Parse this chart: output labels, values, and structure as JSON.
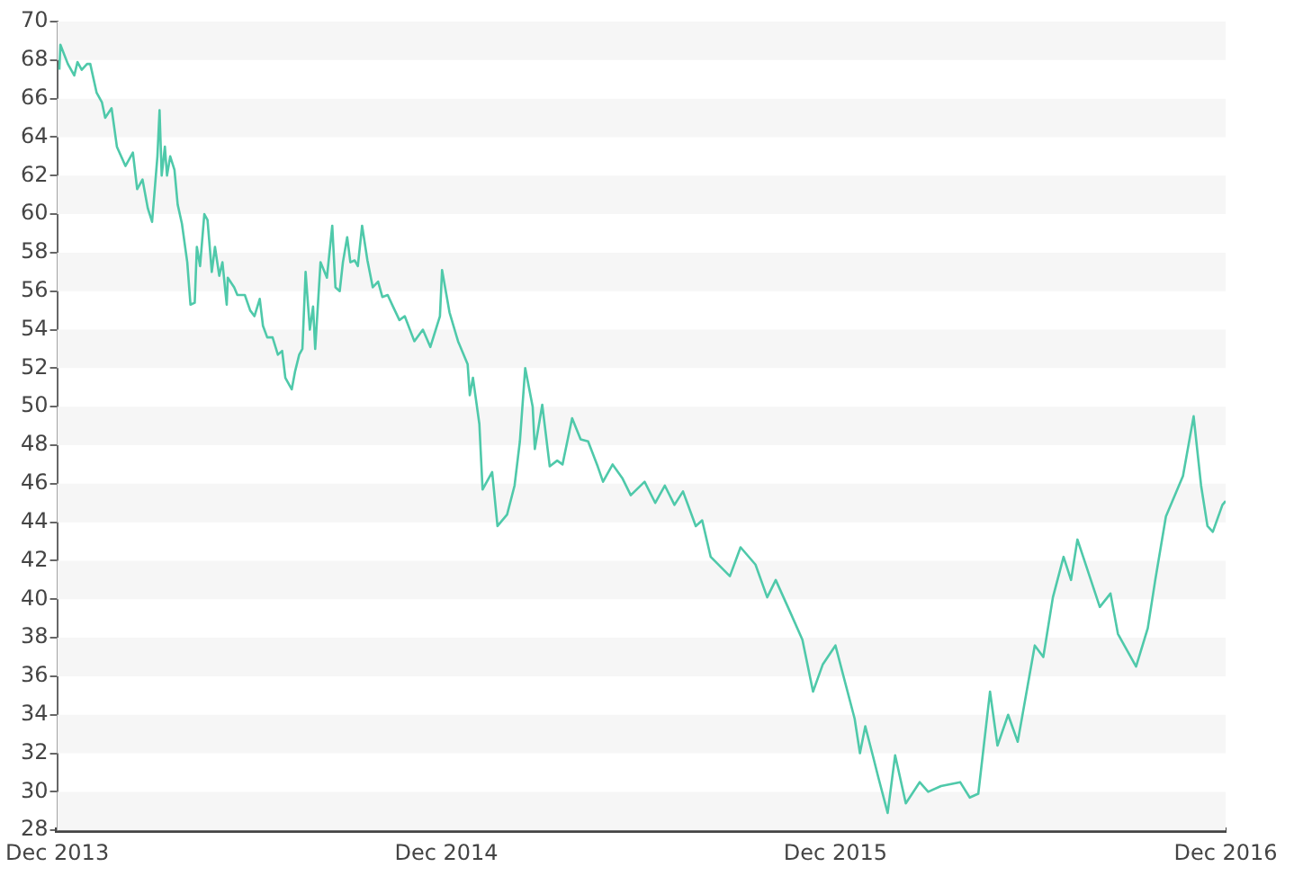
{
  "chart_data": {
    "type": "line",
    "marker": "none",
    "line_style": "solid",
    "xlim": [
      "2013-12-01",
      "2016-12-01"
    ],
    "xticks": [
      {
        "value": "2013-12-01",
        "label": "Dec 2013"
      },
      {
        "value": "2014-12-01",
        "label": "Dec 2014"
      },
      {
        "value": "2015-12-01",
        "label": "Dec 2015"
      },
      {
        "value": "2016-12-01",
        "label": "Dec 2016"
      }
    ],
    "ylim": [
      28,
      70
    ],
    "yticks": [
      28,
      30,
      32,
      34,
      36,
      38,
      40,
      42,
      44,
      46,
      48,
      50,
      52,
      54,
      56,
      58,
      60,
      62,
      64,
      66,
      68,
      70
    ],
    "x": [
      "2013-12-03",
      "2013-12-04",
      "2013-12-11",
      "2013-12-17",
      "2013-12-20",
      "2013-12-24",
      "2013-12-29",
      "2014-01-01",
      "2014-01-07",
      "2014-01-12",
      "2014-01-15",
      "2014-01-21",
      "2014-01-26",
      "2014-02-03",
      "2014-02-10",
      "2014-02-14",
      "2014-02-19",
      "2014-02-24",
      "2014-02-28",
      "2014-03-05",
      "2014-03-07",
      "2014-03-09",
      "2014-03-12",
      "2014-03-14",
      "2014-03-17",
      "2014-03-21",
      "2014-03-24",
      "2014-03-28",
      "2014-04-02",
      "2014-04-05",
      "2014-04-09",
      "2014-04-11",
      "2014-04-14",
      "2014-04-18",
      "2014-04-21",
      "2014-04-25",
      "2014-04-28",
      "2014-05-02",
      "2014-05-05",
      "2014-05-09",
      "2014-05-10",
      "2014-05-16",
      "2014-05-19",
      "2014-05-26",
      "2014-05-31",
      "2014-06-04",
      "2014-06-09",
      "2014-06-12",
      "2014-06-16",
      "2014-06-21",
      "2014-06-26",
      "2014-06-30",
      "2014-07-03",
      "2014-07-09",
      "2014-07-12",
      "2014-07-16",
      "2014-07-19",
      "2014-07-22",
      "2014-07-26",
      "2014-07-29",
      "2014-07-31",
      "2014-08-05",
      "2014-08-11",
      "2014-08-16",
      "2014-08-19",
      "2014-08-23",
      "2014-08-26",
      "2014-08-30",
      "2014-09-02",
      "2014-09-06",
      "2014-09-09",
      "2014-09-13",
      "2014-09-18",
      "2014-09-23",
      "2014-09-28",
      "2014-10-02",
      "2014-10-07",
      "2014-10-12",
      "2014-10-18",
      "2014-10-23",
      "2014-11-01",
      "2014-11-09",
      "2014-11-16",
      "2014-11-25",
      "2014-11-27",
      "2014-12-04",
      "2014-12-12",
      "2014-12-21",
      "2014-12-23",
      "2014-12-26",
      "2015-01-01",
      "2015-01-04",
      "2015-01-13",
      "2015-01-18",
      "2015-01-27",
      "2015-02-03",
      "2015-02-08",
      "2015-02-13",
      "2015-02-20",
      "2015-02-22",
      "2015-03-01",
      "2015-03-08",
      "2015-03-15",
      "2015-03-20",
      "2015-03-29",
      "2015-04-06",
      "2015-04-13",
      "2015-04-22",
      "2015-04-27",
      "2015-05-06",
      "2015-05-15",
      "2015-05-23",
      "2015-06-05",
      "2015-06-15",
      "2015-06-24",
      "2015-07-03",
      "2015-07-11",
      "2015-07-23",
      "2015-07-29",
      "2015-08-06",
      "2015-08-24",
      "2015-09-03",
      "2015-09-17",
      "2015-09-28",
      "2015-10-06",
      "2015-10-19",
      "2015-10-31",
      "2015-11-10",
      "2015-11-19",
      "2015-12-01",
      "2015-12-19",
      "2015-12-24",
      "2015-12-29",
      "2016-01-05",
      "2016-01-10",
      "2016-01-19",
      "2016-01-26",
      "2016-02-05",
      "2016-02-18",
      "2016-02-26",
      "2016-03-09",
      "2016-03-27",
      "2016-04-05",
      "2016-04-13",
      "2016-04-24",
      "2016-05-01",
      "2016-05-11",
      "2016-05-20",
      "2016-06-05",
      "2016-06-13",
      "2016-06-22",
      "2016-07-02",
      "2016-07-09",
      "2016-07-15",
      "2016-08-05",
      "2016-08-15",
      "2016-08-22",
      "2016-09-08",
      "2016-09-19",
      "2016-09-26",
      "2016-10-06",
      "2016-10-22",
      "2016-11-01",
      "2016-11-08",
      "2016-11-14",
      "2016-11-19",
      "2016-11-28",
      "2016-12-01"
    ],
    "series": [
      {
        "color": "#4fc9aa",
        "values": [
          67.5,
          68.8,
          67.8,
          67.2,
          67.9,
          67.5,
          67.8,
          67.8,
          66.3,
          65.8,
          65.0,
          65.5,
          63.5,
          62.5,
          63.2,
          61.3,
          61.8,
          60.3,
          59.6,
          63.0,
          65.4,
          62.0,
          63.5,
          62.0,
          63.0,
          62.3,
          60.5,
          59.5,
          57.5,
          55.3,
          55.4,
          58.3,
          57.3,
          60.0,
          59.7,
          57.0,
          58.3,
          56.8,
          57.5,
          55.3,
          56.7,
          56.2,
          55.8,
          55.8,
          55.0,
          54.7,
          55.6,
          54.2,
          53.6,
          53.6,
          52.7,
          52.9,
          51.5,
          50.9,
          51.8,
          52.7,
          53.0,
          57.0,
          54.0,
          55.2,
          53.0,
          57.5,
          56.7,
          59.4,
          56.2,
          56.0,
          57.5,
          58.8,
          57.5,
          57.6,
          57.3,
          59.4,
          57.6,
          56.2,
          56.5,
          55.7,
          55.8,
          55.2,
          54.5,
          54.7,
          53.4,
          54.0,
          53.1,
          54.7,
          57.1,
          54.9,
          53.4,
          52.2,
          50.6,
          51.5,
          49.1,
          45.7,
          46.6,
          43.8,
          44.4,
          45.9,
          48.2,
          52.0,
          50.0,
          47.8,
          50.1,
          46.9,
          47.2,
          47.0,
          49.4,
          48.3,
          48.2,
          46.9,
          46.1,
          47.0,
          46.3,
          45.4,
          46.1,
          45.0,
          45.9,
          44.9,
          45.6,
          43.8,
          44.1,
          42.2,
          41.2,
          42.7,
          41.8,
          40.1,
          41.0,
          39.4,
          37.9,
          35.2,
          36.6,
          37.6,
          33.8,
          32.0,
          33.4,
          31.9,
          30.8,
          28.9,
          31.9,
          29.4,
          30.5,
          30.0,
          30.3,
          30.5,
          29.7,
          29.9,
          35.2,
          32.4,
          34.0,
          32.6,
          37.6,
          37.0,
          40.1,
          42.2,
          41.0,
          43.1,
          39.6,
          40.3,
          38.2,
          36.5,
          38.5,
          41.0,
          44.3,
          46.4,
          49.5,
          45.9,
          43.8,
          43.5,
          44.9,
          45.1
        ]
      }
    ]
  }
}
